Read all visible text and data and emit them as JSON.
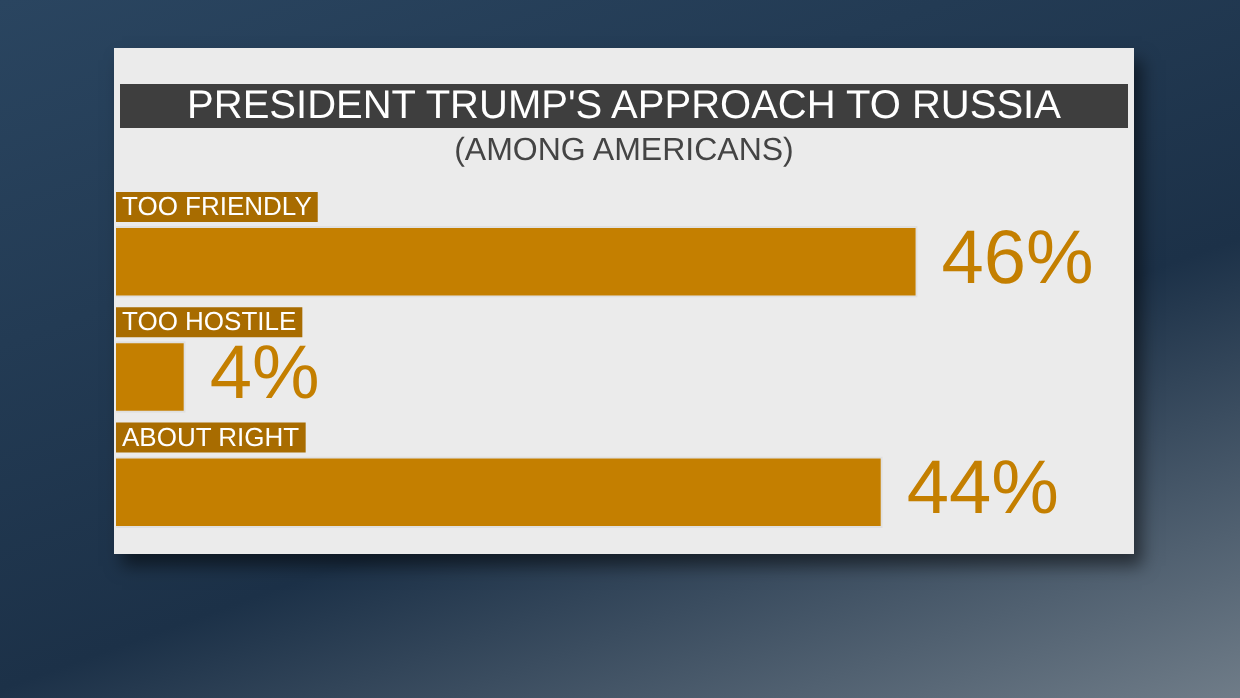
{
  "chart_data": {
    "type": "bar",
    "orientation": "horizontal",
    "title": "PRESIDENT TRUMP'S APPROACH TO RUSSIA",
    "subtitle": "(AMONG AMERICANS)",
    "categories": [
      "TOO FRIENDLY",
      "TOO HOSTILE",
      "ABOUT RIGHT"
    ],
    "values": [
      46,
      4,
      44
    ],
    "value_labels": [
      "46%",
      "4%",
      "44%"
    ],
    "color": "#c47f00",
    "legend": false
  }
}
